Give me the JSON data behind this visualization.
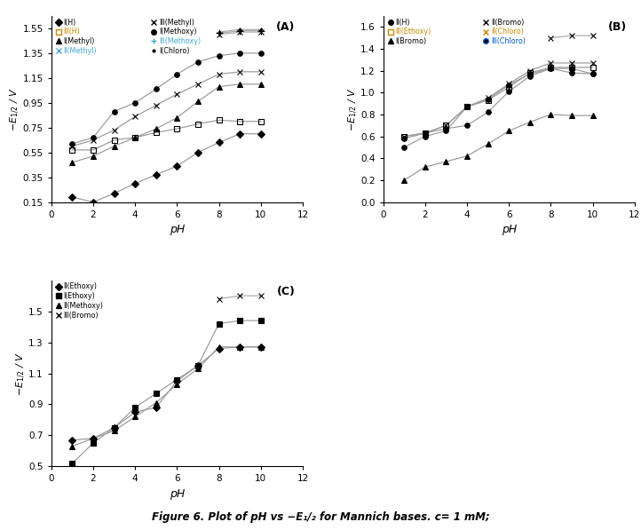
{
  "panel_A": {
    "title": "(A)",
    "xlabel": "pH",
    "ylabel": "-E$_{1/2}$ / V",
    "xlim": [
      0,
      12
    ],
    "ylim": [
      0.15,
      1.65
    ],
    "yticks": [
      0.15,
      0.35,
      0.55,
      0.75,
      0.95,
      1.15,
      1.35,
      1.55
    ],
    "xticks": [
      0,
      2,
      4,
      6,
      8,
      10,
      12
    ],
    "series": [
      {
        "label": "I(H)",
        "legend_color": "black",
        "marker": "D",
        "mfc": "black",
        "mec": "black",
        "markersize": 4,
        "linecolor": "#999999",
        "pH": [
          1,
          2,
          3,
          4,
          5,
          6,
          7,
          8,
          9,
          10
        ],
        "E": [
          0.19,
          0.15,
          0.22,
          0.3,
          0.37,
          0.44,
          0.55,
          0.63,
          0.7,
          0.7
        ]
      },
      {
        "label": "III(H)",
        "legend_color": "#cc8800",
        "marker": "s",
        "mfc": "none",
        "mec": "black",
        "markersize": 4,
        "linecolor": "#999999",
        "pH": [
          1,
          2,
          3,
          4,
          5,
          6,
          7,
          8,
          9,
          10
        ],
        "E": [
          0.57,
          0.57,
          0.65,
          0.67,
          0.71,
          0.74,
          0.78,
          0.81,
          0.8,
          0.8
        ]
      },
      {
        "label": "I(Methyl)",
        "legend_color": "black",
        "marker": "^",
        "mfc": "black",
        "mec": "black",
        "markersize": 4,
        "linecolor": "#999999",
        "pH": [
          1,
          2,
          3,
          4,
          5,
          6,
          7,
          8,
          9,
          10
        ],
        "E": [
          0.47,
          0.52,
          0.6,
          0.67,
          0.74,
          0.83,
          0.96,
          1.08,
          1.1,
          1.1
        ]
      },
      {
        "label": "II(Methyl)",
        "legend_color": "#44aacc",
        "marker": "x",
        "mfc": "black",
        "mec": "black",
        "markersize": 5,
        "linecolor": "#999999",
        "pH": [
          1,
          2,
          3,
          4,
          5,
          6,
          7,
          8,
          9,
          10
        ],
        "E": [
          0.6,
          0.65,
          0.73,
          0.84,
          0.93,
          1.02,
          1.1,
          1.18,
          1.2,
          1.2
        ]
      },
      {
        "label": "III(Methyl)",
        "legend_color": "black",
        "marker": "x",
        "mfc": "black",
        "mec": "black",
        "markersize": 5,
        "linecolor": "#aaaaaa",
        "pH": [
          8,
          9,
          10
        ],
        "E": [
          1.5,
          1.52,
          1.52
        ]
      },
      {
        "label": "I(Methoxy)",
        "legend_color": "black",
        "marker": "o",
        "mfc": "black",
        "mec": "black",
        "markersize": 4,
        "linecolor": "#999999",
        "pH": [
          1,
          2,
          3,
          4,
          5,
          6,
          7,
          8,
          9,
          10
        ],
        "E": [
          0.62,
          0.67,
          0.88,
          0.95,
          1.06,
          1.18,
          1.28,
          1.33,
          1.35,
          1.35
        ]
      },
      {
        "label": "III(Methoxy)",
        "legend_color": "#44aacc",
        "marker": "+",
        "mfc": "black",
        "mec": "black",
        "markersize": 6,
        "linecolor": "#aaaaaa",
        "pH": [
          8,
          9,
          10
        ],
        "E": [
          1.51,
          1.53,
          1.53
        ]
      },
      {
        "label": "I(Chloro)",
        "legend_color": "black",
        "marker": ".",
        "mfc": "black",
        "mec": "black",
        "markersize": 3,
        "linecolor": "#aaaaaa",
        "pH": [
          8,
          9,
          10
        ],
        "E": [
          1.52,
          1.54,
          1.54
        ]
      }
    ],
    "legend_col1": [
      "I(H)",
      "III(H)",
      "I(Methyl)",
      "II(Methyl)"
    ],
    "legend_col2": [
      "III(Methyl)",
      "I(Methoxy)",
      "III(Methoxy)",
      "I(Chloro)"
    ]
  },
  "panel_B": {
    "title": "(B)",
    "xlabel": "pH",
    "ylabel": "-E$_{1/2}$ / V",
    "xlim": [
      0,
      12
    ],
    "ylim": [
      0,
      1.7
    ],
    "yticks": [
      0,
      0.2,
      0.4,
      0.6,
      0.8,
      1.0,
      1.2,
      1.4,
      1.6
    ],
    "xticks": [
      0,
      2,
      4,
      6,
      8,
      10,
      12
    ],
    "series": [
      {
        "label": "II(H)",
        "legend_color": "black",
        "marker": "o",
        "mfc": "black",
        "mec": "black",
        "markersize": 4,
        "linecolor": "#999999",
        "pH": [
          1,
          2,
          3,
          4,
          5,
          6,
          7,
          8,
          9,
          10
        ],
        "E": [
          0.58,
          0.63,
          0.67,
          0.7,
          0.82,
          1.01,
          1.15,
          1.22,
          1.18,
          1.17
        ]
      },
      {
        "label": "III(Ethoxy)",
        "legend_color": "#cc8800",
        "marker": "s",
        "mfc": "none",
        "mec": "black",
        "markersize": 4,
        "linecolor": "#999999",
        "pH": [
          1,
          2,
          3,
          4,
          5,
          6,
          7,
          8,
          9,
          10
        ],
        "E": [
          0.6,
          0.63,
          0.7,
          0.87,
          0.93,
          1.05,
          1.18,
          1.23,
          1.23,
          1.23
        ]
      },
      {
        "label": "I(Bromo)",
        "legend_color": "black",
        "marker": "^",
        "mfc": "black",
        "mec": "black",
        "markersize": 4,
        "linecolor": "#999999",
        "pH": [
          1,
          2,
          3,
          4,
          5,
          6,
          7,
          8,
          9,
          10
        ],
        "E": [
          0.2,
          0.32,
          0.37,
          0.42,
          0.53,
          0.65,
          0.73,
          0.8,
          0.79,
          0.79
        ]
      },
      {
        "label": "II(Bromo)",
        "legend_color": "black",
        "marker": "x",
        "mfc": "black",
        "mec": "black",
        "markersize": 5,
        "linecolor": "#999999",
        "pH": [
          1,
          2,
          3,
          4,
          5,
          6,
          7,
          8,
          9,
          10
        ],
        "E": [
          0.6,
          0.63,
          0.7,
          0.87,
          0.95,
          1.08,
          1.2,
          1.27,
          1.27,
          1.27
        ]
      },
      {
        "label": "II(Chloro)",
        "legend_color": "#cc8800",
        "marker": "x",
        "mfc": "black",
        "mec": "black",
        "markersize": 5,
        "linecolor": "#aaaaaa",
        "pH": [
          8,
          9,
          10
        ],
        "E": [
          1.5,
          1.52,
          1.52
        ]
      },
      {
        "label": "III(Chloro)",
        "legend_color": "#0055cc",
        "marker": "o",
        "mfc": "black",
        "mec": "black",
        "markersize": 4,
        "linecolor": "#999999",
        "pH": [
          1,
          2,
          3,
          4,
          5,
          6,
          7,
          8,
          9,
          10
        ],
        "E": [
          0.5,
          0.6,
          0.65,
          0.87,
          0.94,
          1.07,
          1.17,
          1.22,
          1.22,
          1.17
        ]
      }
    ],
    "legend_col1": [
      "II(H)",
      "III(Ethoxy)",
      "I(Bromo)"
    ],
    "legend_col2": [
      "II(Bromo)",
      "II(Chloro)",
      "III(Chloro)"
    ]
  },
  "panel_C": {
    "title": "(C)",
    "xlabel": "pH",
    "ylabel": "-E$_{1/2}$ / V",
    "xlim": [
      0,
      12
    ],
    "ylim": [
      0.5,
      1.7
    ],
    "yticks": [
      0.5,
      0.7,
      0.9,
      1.1,
      1.3,
      1.5
    ],
    "xticks": [
      0,
      2,
      4,
      6,
      8,
      10,
      12
    ],
    "series": [
      {
        "label": "II(Ethoxy)",
        "legend_color": "black",
        "marker": "D",
        "mfc": "black",
        "mec": "black",
        "markersize": 4,
        "linecolor": "#999999",
        "pH": [
          1,
          2,
          3,
          4,
          5,
          6,
          7,
          8,
          9,
          10
        ],
        "E": [
          0.67,
          0.68,
          0.75,
          0.85,
          0.88,
          1.05,
          1.15,
          1.26,
          1.27,
          1.27
        ]
      },
      {
        "label": "I(Ethoxy)",
        "legend_color": "black",
        "marker": "s",
        "mfc": "black",
        "mec": "black",
        "markersize": 4,
        "linecolor": "#999999",
        "pH": [
          1,
          2,
          3,
          4,
          5,
          6,
          7,
          8,
          9,
          10
        ],
        "E": [
          0.52,
          0.65,
          0.75,
          0.88,
          0.97,
          1.06,
          1.15,
          1.42,
          1.44,
          1.44
        ]
      },
      {
        "label": "II(Methoxy)",
        "legend_color": "black",
        "marker": "^",
        "mfc": "black",
        "mec": "black",
        "markersize": 4,
        "linecolor": "#999999",
        "pH": [
          1,
          2,
          3,
          4,
          5,
          6,
          7,
          8,
          9,
          10
        ],
        "E": [
          0.63,
          0.68,
          0.73,
          0.82,
          0.91,
          1.03,
          1.13,
          1.27,
          1.27,
          1.27
        ]
      },
      {
        "label": "III(Bromo)",
        "legend_color": "black",
        "marker": "x",
        "mfc": "black",
        "mec": "black",
        "markersize": 5,
        "linecolor": "#aaaaaa",
        "pH": [
          8,
          9,
          10
        ],
        "E": [
          1.58,
          1.6,
          1.6
        ]
      }
    ],
    "legend_col1": [
      "II(Ethoxy)",
      "I(Ethoxy)",
      "II(Methoxy)",
      "III(Bromo)"
    ]
  },
  "figure_caption": "Figure 6. Plot of pH vs −E₁/₂ for Mannich bases. c= 1 mM;"
}
